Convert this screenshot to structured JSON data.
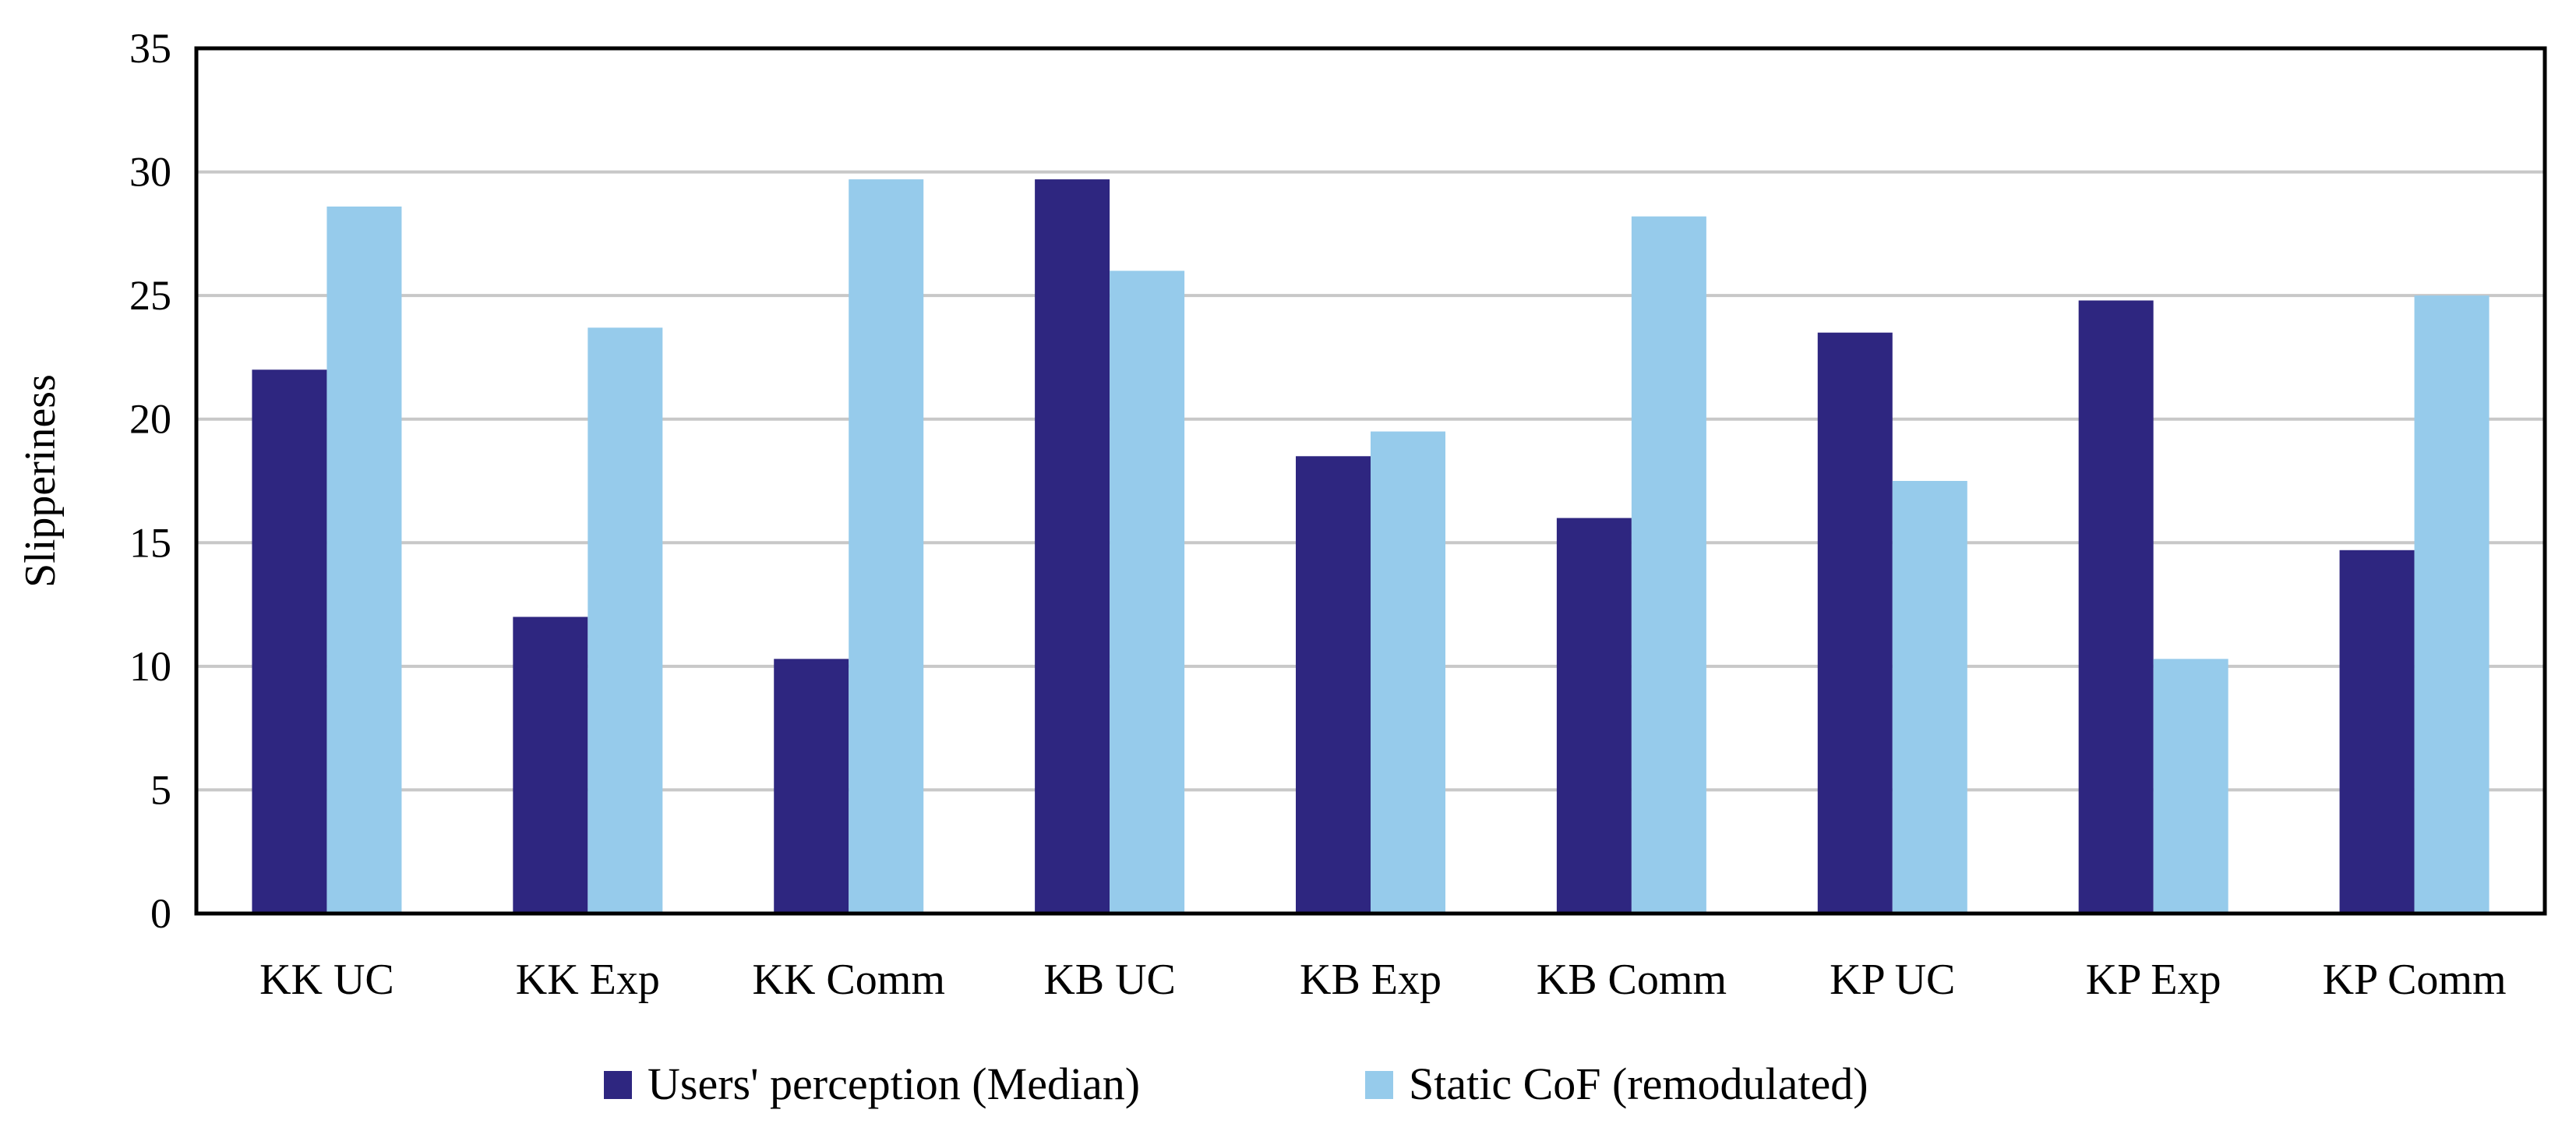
{
  "chart_data": {
    "type": "bar",
    "title": "",
    "xlabel": "",
    "ylabel": "Slipperiness",
    "ylim": [
      0,
      35
    ],
    "yticks": [
      0,
      5,
      10,
      15,
      20,
      25,
      30,
      35
    ],
    "grid": true,
    "legend_position": "bottom",
    "categories": [
      "KK UC",
      "KK Exp",
      "KK Comm",
      "KB UC",
      "KB Exp",
      "KB Comm",
      "KP UC",
      "KP Exp",
      "KP Comm"
    ],
    "series": [
      {
        "name": "Users' perception (Median)",
        "color": "#2e2680",
        "values": [
          22,
          12,
          10.3,
          29.7,
          18.5,
          16,
          23.5,
          24.8,
          14.7
        ]
      },
      {
        "name": "Static CoF (remodulated)",
        "color": "#96cbeb",
        "values": [
          28.6,
          23.7,
          29.7,
          26,
          19.5,
          28.2,
          17.5,
          10.3,
          25
        ]
      }
    ]
  }
}
